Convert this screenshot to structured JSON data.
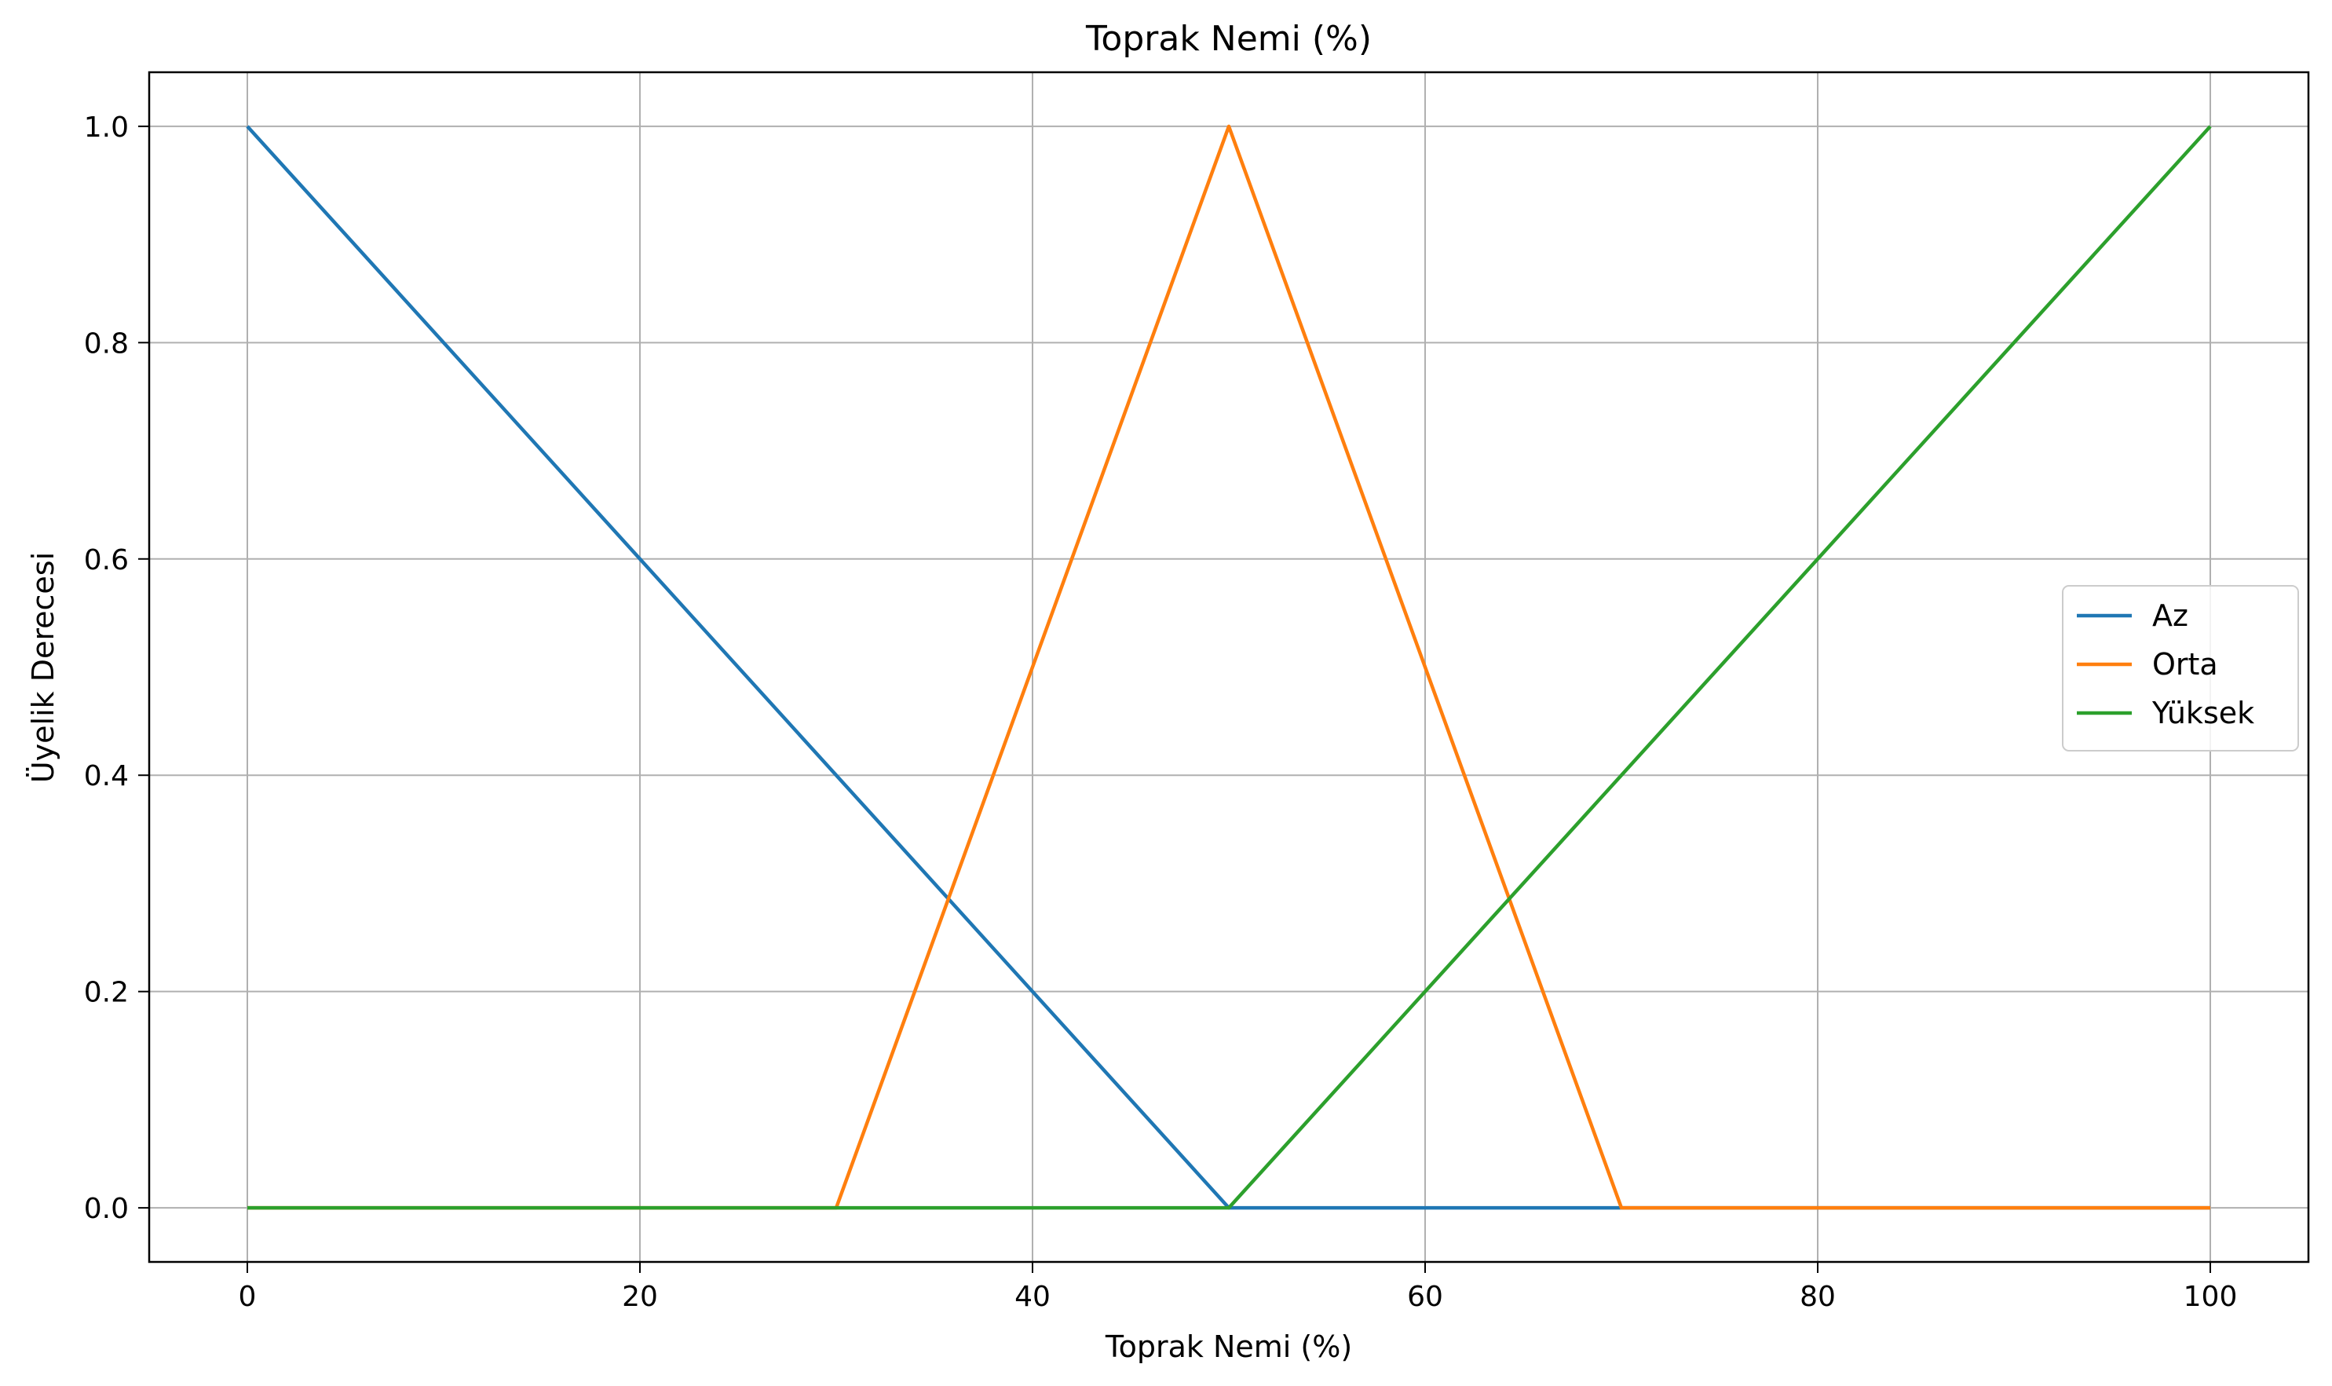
{
  "chart_data": {
    "type": "line",
    "title": "Toprak Nemi (%)",
    "xlabel": "Toprak Nemi (%)",
    "ylabel": "Üyelik Derecesi",
    "xlim": [
      -5,
      105
    ],
    "ylim": [
      -0.05,
      1.05
    ],
    "x_ticks": [
      0,
      20,
      40,
      60,
      80,
      100
    ],
    "x_tick_labels": [
      "0",
      "20",
      "40",
      "60",
      "80",
      "100"
    ],
    "y_ticks": [
      0.0,
      0.2,
      0.4,
      0.6,
      0.8,
      1.0
    ],
    "y_tick_labels": [
      "0.0",
      "0.2",
      "0.4",
      "0.6",
      "0.8",
      "1.0"
    ],
    "grid": true,
    "legend_position": "center-right",
    "series": [
      {
        "name": "Az",
        "color": "#1f77b4",
        "x": [
          0,
          50,
          70,
          100
        ],
        "y": [
          1.0,
          0.0,
          0.0,
          0.0
        ]
      },
      {
        "name": "Orta",
        "color": "#ff7f0e",
        "x": [
          0,
          30,
          50,
          70,
          100
        ],
        "y": [
          0.0,
          0.0,
          1.0,
          0.0,
          0.0
        ]
      },
      {
        "name": "Yüksek",
        "color": "#2ca02c",
        "x": [
          0,
          50,
          100
        ],
        "y": [
          0.0,
          0.0,
          1.0
        ]
      }
    ]
  }
}
